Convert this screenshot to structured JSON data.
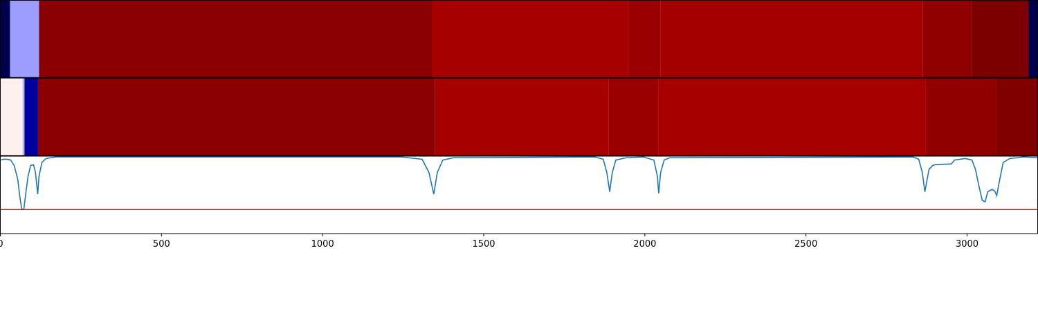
{
  "chart_data": {
    "type": "line",
    "xlim": [
      0,
      3219
    ],
    "xticks": [
      0,
      500,
      1000,
      1500,
      2000,
      2500,
      3000
    ],
    "ylim": [
      0,
      1
    ],
    "heatmaps": [
      {
        "edges": [
          0,
          30,
          120,
          1341,
          1948,
          2049,
          2863,
          3013,
          3191,
          3219
        ],
        "colors": [
          "#00004f",
          "#9d9dff",
          "#8b0000",
          "#a60000",
          "#9a0000",
          "#a50000",
          "#900000",
          "#7d0000",
          "#00004f"
        ]
      },
      {
        "edges": [
          0,
          69,
          75,
          116,
          1348,
          1888,
          2043,
          2871,
          3090,
          3219
        ],
        "colors": [
          "#fff0f0",
          "#b8b8ff",
          "#0000a0",
          "#8b0000",
          "#a60000",
          "#9a0000",
          "#a60000",
          "#900000",
          "#800000"
        ]
      }
    ],
    "series": [
      {
        "color": "#1f77b4",
        "x": [
          0,
          11,
          21,
          32,
          43,
          54,
          62,
          67,
          73,
          79,
          86,
          94,
          103,
          109,
          116,
          120,
          129,
          142,
          172,
          429,
          1245,
          1309,
          1330,
          1345,
          1356,
          1373,
          1406,
          1845,
          1871,
          1882,
          1891,
          1899,
          1910,
          1942,
          1996,
          2028,
          2039,
          2043,
          2049,
          2060,
          2077,
          2833,
          2850,
          2861,
          2869,
          2876,
          2882,
          2893,
          2901,
          2951,
          2961,
          2994,
          3015,
          3026,
          3037,
          3047,
          3056,
          3064,
          3077,
          3086,
          3092,
          3099,
          3112,
          3133,
          3176,
          3219
        ],
        "values": [
          0.95,
          0.96,
          0.96,
          0.95,
          0.88,
          0.7,
          0.43,
          0.31,
          0.32,
          0.52,
          0.74,
          0.88,
          0.89,
          0.79,
          0.51,
          0.74,
          0.92,
          0.97,
          0.99,
          0.99,
          0.99,
          0.96,
          0.79,
          0.51,
          0.79,
          0.95,
          0.98,
          0.99,
          0.96,
          0.79,
          0.54,
          0.79,
          0.95,
          0.98,
          0.99,
          0.95,
          0.74,
          0.52,
          0.79,
          0.95,
          0.98,
          0.99,
          0.96,
          0.79,
          0.54,
          0.7,
          0.83,
          0.88,
          0.89,
          0.9,
          0.95,
          0.97,
          0.95,
          0.83,
          0.61,
          0.43,
          0.41,
          0.54,
          0.57,
          0.55,
          0.49,
          0.65,
          0.92,
          0.97,
          0.99,
          0.98
        ]
      }
    ],
    "threshold": {
      "value": 0.31,
      "color": "#ff0000"
    }
  }
}
